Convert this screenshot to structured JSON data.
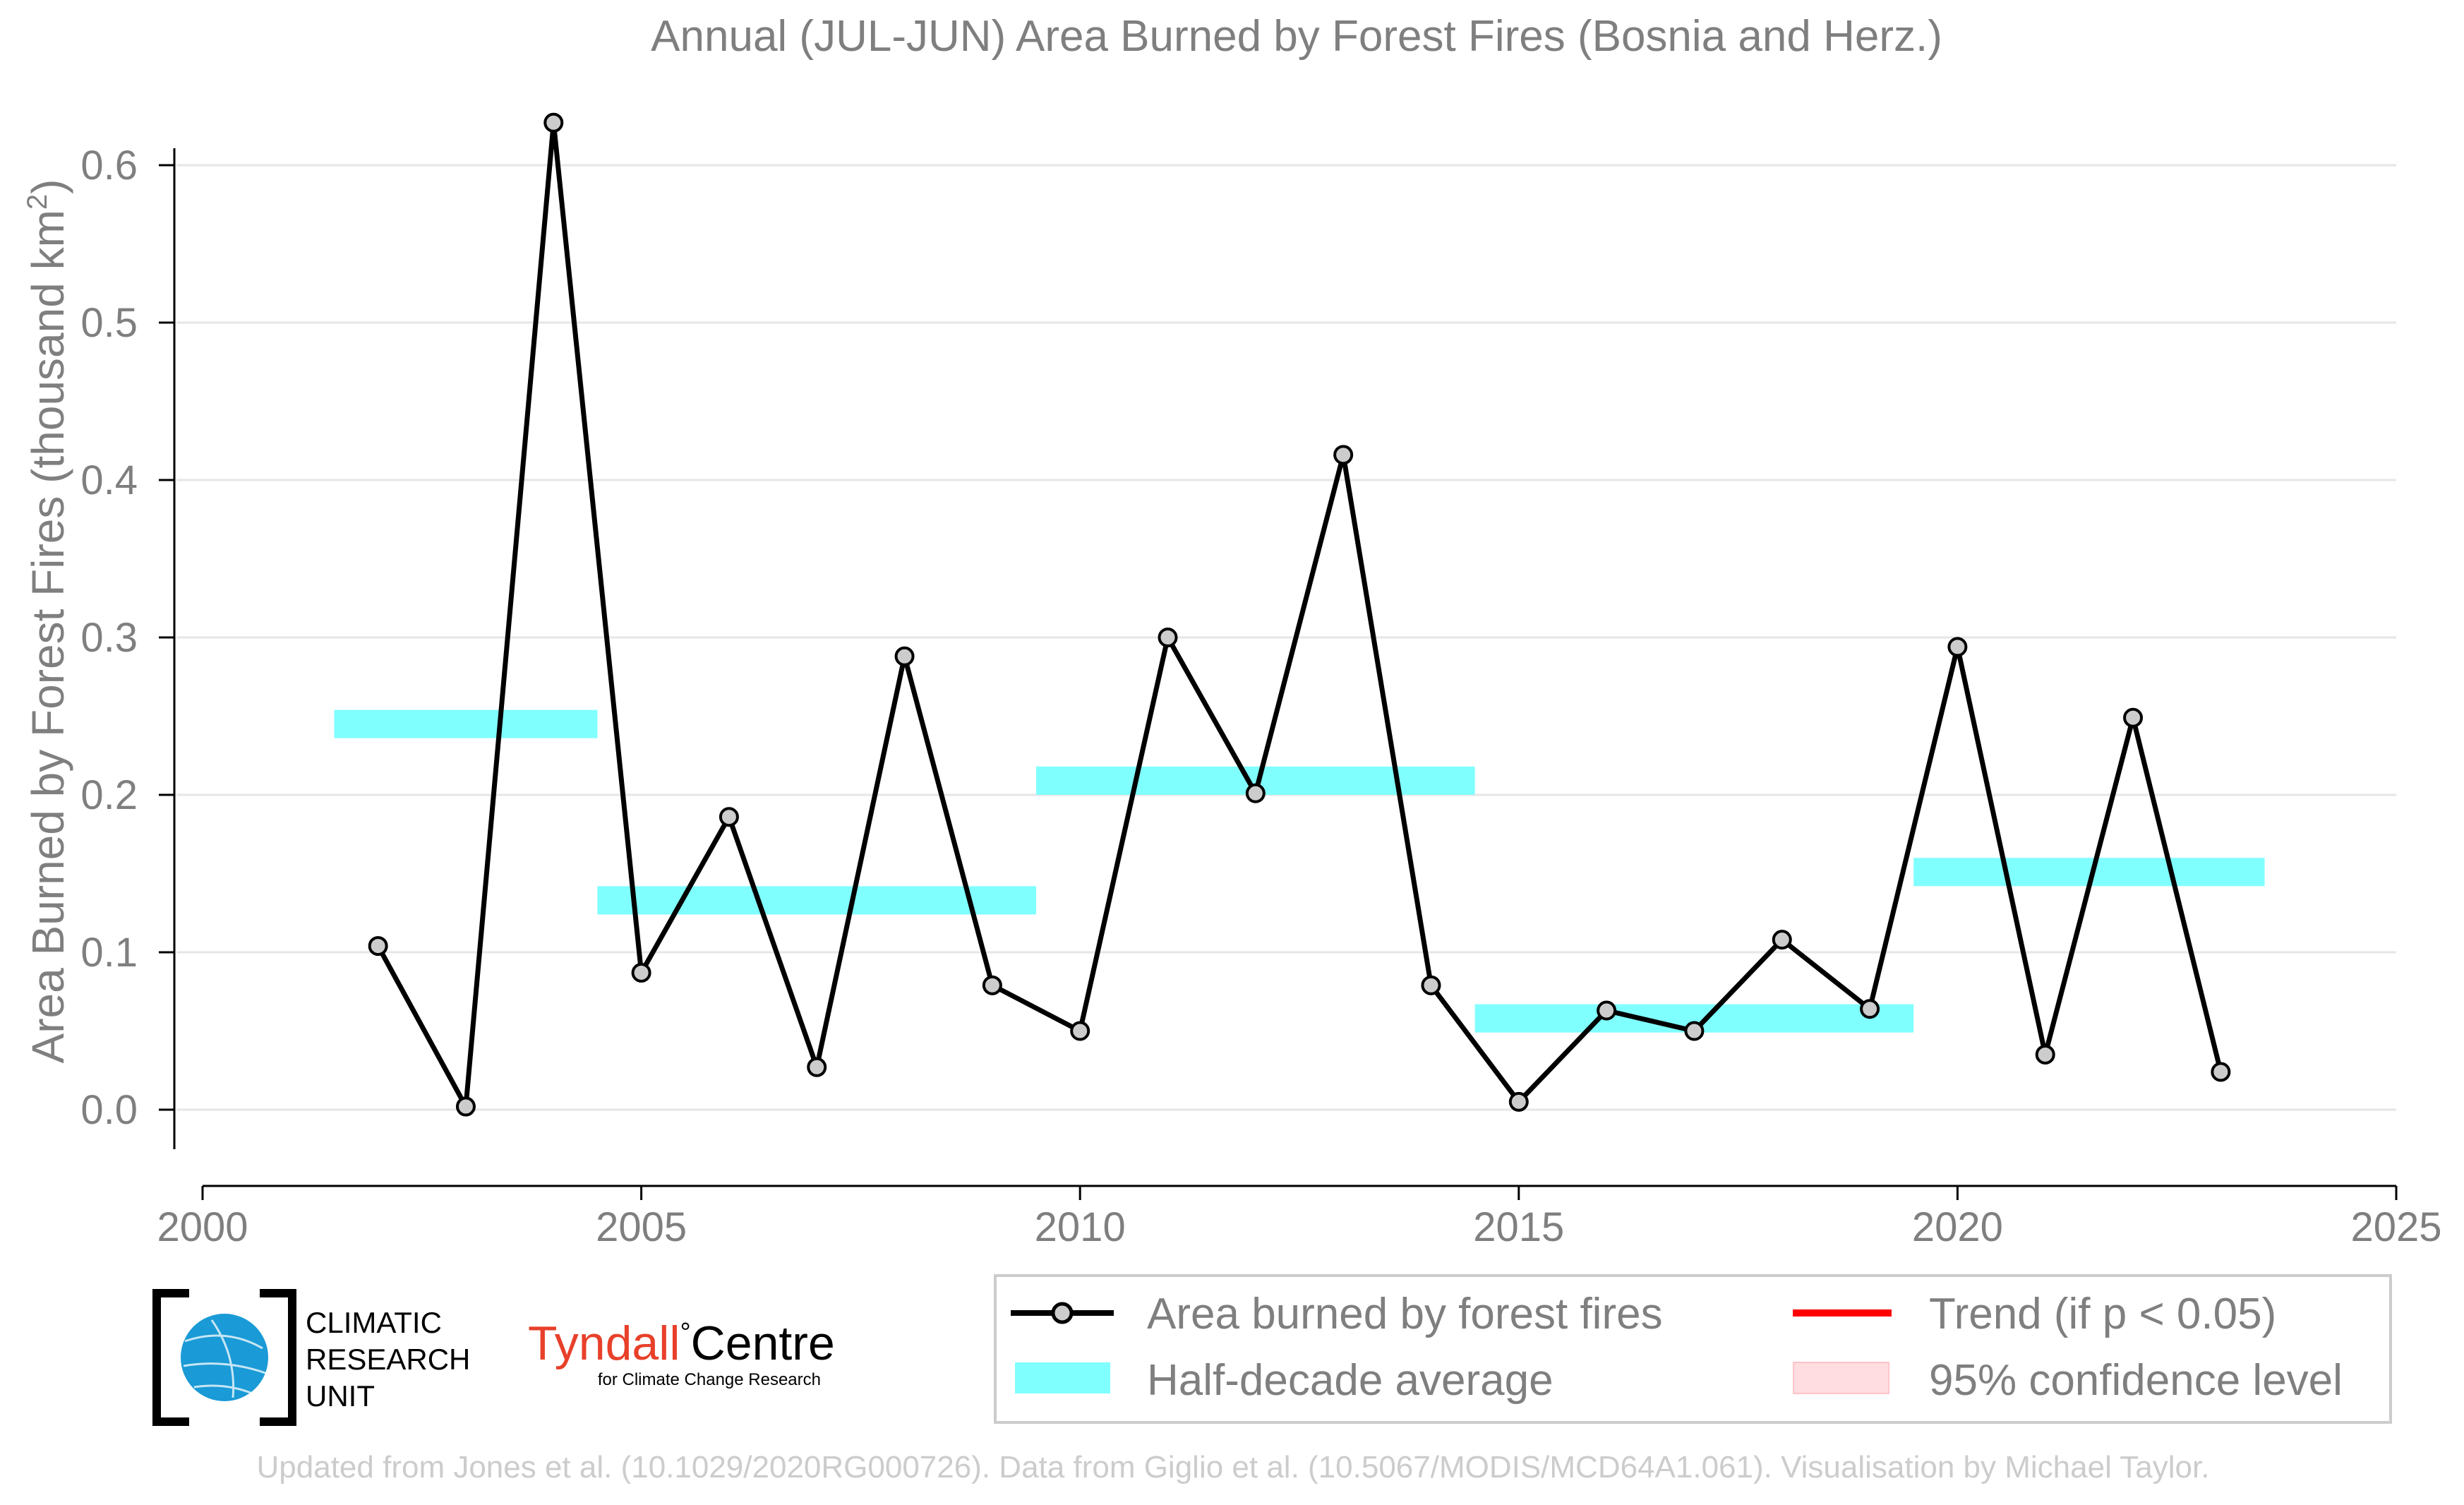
{
  "chart_data": {
    "type": "line",
    "title": "Annual (JUL-JUN) Area Burned by Forest Fires (Bosnia and Herz.)",
    "xlabel": "",
    "ylabel": "Area Burned by Forest Fires (thousand km²)",
    "ylabel_main": "Area Burned by Forest Fires (thousand km",
    "ylabel_sup": "2",
    "ylabel_close": ")",
    "xlim": [
      2000,
      2025
    ],
    "ylim": [
      -0.05,
      0.65
    ],
    "x_ticks": [
      2000,
      2005,
      2010,
      2015,
      2020,
      2025
    ],
    "y_ticks": [
      0.0,
      0.1,
      0.2,
      0.3,
      0.4,
      0.5,
      0.6
    ],
    "x_tick_labels": [
      "2000",
      "2005",
      "2010",
      "2015",
      "2020",
      "2025"
    ],
    "y_tick_labels": [
      "0.0",
      "0.1",
      "0.2",
      "0.3",
      "0.4",
      "0.5",
      "0.6"
    ],
    "grid": true,
    "series": [
      {
        "name": "Area burned by forest fires",
        "color": "#000000",
        "marker_fill": "#cccccc",
        "x": [
          2002,
          2003,
          2004,
          2005,
          2006,
          2007,
          2008,
          2009,
          2010,
          2011,
          2012,
          2013,
          2014,
          2015,
          2016,
          2017,
          2018,
          2019,
          2020,
          2021,
          2022,
          2023
        ],
        "y": [
          0.104,
          0.002,
          0.627,
          0.087,
          0.186,
          0.027,
          0.288,
          0.079,
          0.05,
          0.3,
          0.201,
          0.416,
          0.079,
          0.005,
          0.063,
          0.05,
          0.108,
          0.064,
          0.294,
          0.035,
          0.249,
          0.024
        ]
      }
    ],
    "half_decade_average": {
      "name": "Half-decade average",
      "color": "#80ffff",
      "segments": [
        {
          "x_start": 2001.5,
          "x_end": 2004.5,
          "value": 0.245
        },
        {
          "x_start": 2004.5,
          "x_end": 2009.5,
          "value": 0.133
        },
        {
          "x_start": 2009.5,
          "x_end": 2014.5,
          "value": 0.209
        },
        {
          "x_start": 2014.5,
          "x_end": 2019.5,
          "value": 0.058
        },
        {
          "x_start": 2019.5,
          "x_end": 2023.5,
          "value": 0.151
        }
      ]
    },
    "legend": {
      "placement": "bottom-right",
      "items": [
        {
          "label": "Area burned by forest fires",
          "kind": "line-marker",
          "color": "#000000"
        },
        {
          "label": "Trend (if p < 0.05)",
          "kind": "line",
          "color": "#ff0000"
        },
        {
          "label": "Half-decade average",
          "kind": "band",
          "color": "#80ffff"
        },
        {
          "label": "95% confidence level",
          "kind": "patch",
          "color": "#ffdde0"
        }
      ]
    }
  },
  "logos": {
    "cru_lines": [
      "CLIMATIC",
      "RESEARCH",
      "UNIT"
    ],
    "tyndall_name": "Tyndall",
    "tyndall_degree": "°",
    "tyndall_centre": "Centre",
    "tyndall_sub": "for Climate Change Research",
    "tyndall_color": "#e8402a",
    "cru_globe_color": "#1a9ad6"
  },
  "footer": "Updated from Jones et al. (10.1029/2020RG000726). Data from Giglio et al. (10.5067/MODIS/MCD64A1.061). Visualisation by Michael Taylor."
}
